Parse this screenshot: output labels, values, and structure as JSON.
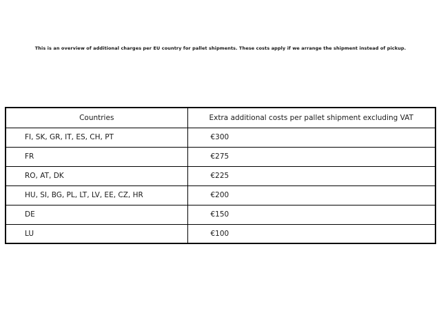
{
  "page": {
    "intro_text": "This is an overview of additional charges per EU country for pallet shipments. These costs apply if we arrange the shipment instead of pickup."
  },
  "table": {
    "headers": {
      "countries": "Countries",
      "costs": "Extra additional costs per pallet shipment excluding VAT"
    },
    "rows": [
      {
        "countries": "FI, SK, GR, IT, ES, CH, PT",
        "cost": "€300"
      },
      {
        "countries": "FR",
        "cost": "€275"
      },
      {
        "countries": "RO, AT, DK",
        "cost": "€225"
      },
      {
        "countries": "HU, SI, BG, PL, LT, LV, EE, CZ, HR",
        "cost": "€200"
      },
      {
        "countries": "DE",
        "cost": "€150"
      },
      {
        "countries": "LU",
        "cost": "€100"
      }
    ]
  },
  "colors": {
    "background": "#ffffff",
    "text": "#1a1a1a",
    "border": "#000000"
  }
}
